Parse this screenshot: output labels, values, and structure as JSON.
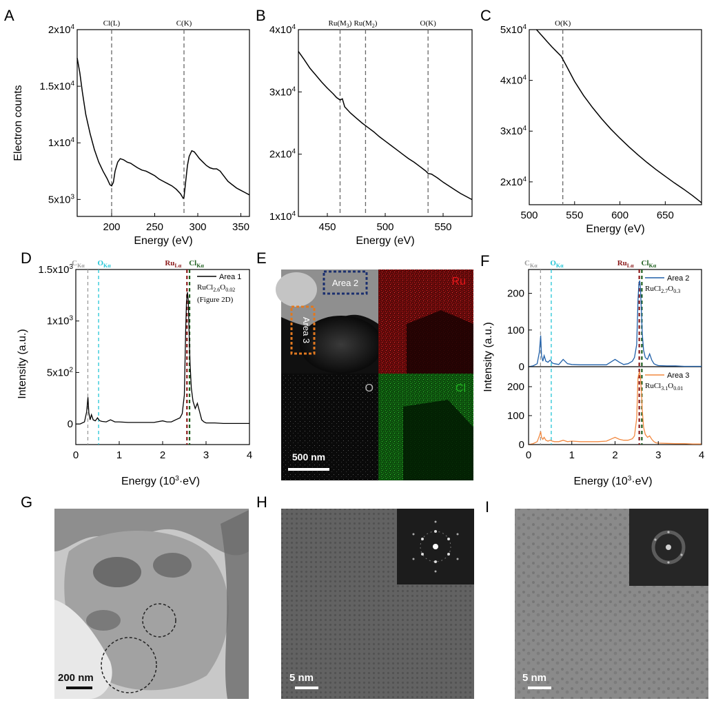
{
  "panel_letters": [
    "A",
    "B",
    "C",
    "D",
    "E",
    "F",
    "G",
    "H",
    "I"
  ],
  "chart_data": [
    {
      "panel": "A",
      "type": "line",
      "xlabel": "Energy (eV)",
      "ylabel": "Electron counts",
      "xlim": [
        160,
        360
      ],
      "ylim": [
        3500,
        20000
      ],
      "xticks": [
        200,
        250,
        300,
        350
      ],
      "yticks": [
        {
          "v": 5000,
          "label": "5x10",
          "exp": "3"
        },
        {
          "v": 10000,
          "label": "1x10",
          "exp": "4"
        },
        {
          "v": 15000,
          "label": "1.5x10",
          "exp": "4"
        },
        {
          "v": 20000,
          "label": "2x10",
          "exp": "4"
        }
      ],
      "edges": [
        {
          "x": 200,
          "label": "Cl(L)"
        },
        {
          "x": 284,
          "label": "C(K)"
        }
      ],
      "x": [
        160,
        163,
        166,
        170,
        175,
        180,
        185,
        190,
        195,
        198,
        200,
        202,
        204,
        207,
        210,
        214,
        218,
        222,
        226,
        230,
        235,
        240,
        245,
        250,
        255,
        260,
        265,
        270,
        275,
        280,
        283,
        284,
        286,
        288,
        290,
        293,
        296,
        299,
        302,
        306,
        310,
        314,
        318,
        322,
        326,
        330,
        335,
        340,
        345,
        350,
        355,
        360
      ],
      "y": [
        17500,
        16200,
        14500,
        12500,
        10800,
        9400,
        8300,
        7500,
        6800,
        6300,
        6200,
        6500,
        7500,
        8300,
        8600,
        8500,
        8300,
        8200,
        8000,
        7800,
        7600,
        7500,
        7300,
        7100,
        6800,
        6600,
        6400,
        6200,
        5900,
        5500,
        5100,
        5200,
        6600,
        8000,
        8800,
        9300,
        9200,
        8900,
        8600,
        8300,
        8000,
        7800,
        7700,
        7700,
        7500,
        7100,
        6600,
        6300,
        6000,
        5800,
        5600,
        5400
      ]
    },
    {
      "panel": "B",
      "type": "line",
      "xlabel": "Energy (eV)",
      "ylabel": "",
      "xlim": [
        425,
        575
      ],
      "ylim": [
        10000,
        40000
      ],
      "xticks": [
        450,
        500,
        550
      ],
      "yticks": [
        {
          "v": 10000,
          "label": "1x10",
          "exp": "4"
        },
        {
          "v": 20000,
          "label": "2x10",
          "exp": "4"
        },
        {
          "v": 30000,
          "label": "3x10",
          "exp": "4"
        },
        {
          "v": 40000,
          "label": "4x10",
          "exp": "4"
        }
      ],
      "edges": [
        {
          "x": 461,
          "label": "Ru(M",
          "sub": "3",
          "tail": ")"
        },
        {
          "x": 483,
          "label": "Ru(M",
          "sub": "2",
          "tail": ")"
        },
        {
          "x": 537,
          "label": "O(K)"
        }
      ],
      "x": [
        425,
        430,
        435,
        440,
        445,
        450,
        455,
        458,
        461,
        463,
        465,
        470,
        475,
        480,
        485,
        490,
        495,
        500,
        505,
        510,
        515,
        520,
        525,
        530,
        535,
        537,
        540,
        545,
        550,
        555,
        560,
        565,
        570,
        575
      ],
      "y": [
        36500,
        35200,
        33800,
        32700,
        31600,
        30600,
        29700,
        29100,
        28700,
        28900,
        27600,
        26600,
        25800,
        25000,
        24300,
        23600,
        22800,
        22100,
        21400,
        20700,
        20000,
        19300,
        18700,
        18000,
        17300,
        16900,
        16800,
        16200,
        15500,
        14900,
        14300,
        13700,
        13200,
        12700
      ]
    },
    {
      "panel": "C",
      "type": "line",
      "xlabel": "Energy (eV)",
      "ylabel": "",
      "xlim": [
        500,
        690
      ],
      "ylim": [
        15500,
        50000
      ],
      "xticks": [
        500,
        550,
        600,
        650
      ],
      "yticks": [
        {
          "v": 20000,
          "label": "2x10",
          "exp": "4"
        },
        {
          "v": 30000,
          "label": "3x10",
          "exp": "4"
        },
        {
          "v": 40000,
          "label": "4x10",
          "exp": "4"
        },
        {
          "v": 50000,
          "label": "5x10",
          "exp": "4"
        }
      ],
      "edges": [
        {
          "x": 537,
          "label": "O(K)"
        }
      ],
      "x": [
        508,
        515,
        520,
        525,
        530,
        535,
        540,
        545,
        550,
        560,
        570,
        580,
        590,
        600,
        610,
        620,
        630,
        640,
        650,
        660,
        670,
        680,
        690
      ],
      "y": [
        50000,
        48600,
        47600,
        46600,
        45700,
        44800,
        43200,
        41500,
        39800,
        37000,
        34600,
        32400,
        30400,
        28600,
        26900,
        25300,
        23800,
        22400,
        21100,
        19800,
        18600,
        17300,
        15900
      ]
    },
    {
      "panel": "D",
      "type": "line",
      "xlabel": "Energy (10",
      "xlabel_sup": "3",
      "xlabel_tail": "·eV)",
      "ylabel": "Intensity (a.u.)",
      "xlim": [
        0,
        4
      ],
      "ylim": [
        -200,
        1500
      ],
      "xticks": [
        0,
        1,
        2,
        3,
        4
      ],
      "yticks": [
        {
          "v": 0,
          "label": "0",
          "exp": ""
        },
        {
          "v": 500,
          "label": "5x10",
          "exp": "2"
        },
        {
          "v": 1000,
          "label": "1x10",
          "exp": "3"
        },
        {
          "v": 1500,
          "label": "1.5x10",
          "exp": "3"
        }
      ],
      "markers": [
        {
          "x": 0.277,
          "color": "#9a9a9a",
          "label": "C",
          "sub": "Kα"
        },
        {
          "x": 0.525,
          "color": "#22c5d6",
          "label": "O",
          "sub": "Kα"
        },
        {
          "x": 2.56,
          "color": "#8b1a1a",
          "label": "Ru",
          "sub": "Lα"
        },
        {
          "x": 2.62,
          "color": "#1e5e1e",
          "label": "Cl",
          "sub": "Kα"
        }
      ],
      "legend": {
        "name": "Area 1",
        "formula": "RuCl",
        "s1": "2.6",
        "mid": "O",
        "s2": "0.02",
        "note": "(Figure 2D)"
      },
      "x": [
        0,
        0.1,
        0.2,
        0.25,
        0.28,
        0.3,
        0.33,
        0.36,
        0.4,
        0.45,
        0.5,
        0.53,
        0.56,
        0.6,
        0.7,
        0.8,
        0.9,
        1.0,
        1.2,
        1.4,
        1.6,
        1.8,
        2.0,
        2.1,
        2.2,
        2.3,
        2.4,
        2.45,
        2.5,
        2.53,
        2.55,
        2.57,
        2.59,
        2.61,
        2.63,
        2.66,
        2.7,
        2.75,
        2.8,
        2.85,
        2.9,
        2.95,
        3.0,
        3.2,
        3.4,
        3.6,
        3.8,
        4.0
      ],
      "y": [
        0,
        0,
        20,
        120,
        260,
        110,
        40,
        90,
        40,
        30,
        60,
        40,
        30,
        25,
        20,
        40,
        20,
        20,
        15,
        15,
        15,
        15,
        30,
        20,
        20,
        40,
        60,
        100,
        280,
        900,
        1180,
        1280,
        1200,
        900,
        600,
        350,
        220,
        150,
        200,
        120,
        40,
        20,
        10,
        10,
        5,
        5,
        5,
        5
      ]
    },
    {
      "panel": "F",
      "type": "line",
      "xlabel": "Energy (10",
      "xlabel_sup": "3",
      "xlabel_tail": "·eV)",
      "ylabel": "Intensity (a.u.)",
      "xlim": [
        0,
        4
      ],
      "xticks": [
        0,
        1,
        2,
        3,
        4
      ],
      "subplots": [
        {
          "ylim": [
            0,
            250
          ],
          "yticks": [
            0,
            100,
            200
          ],
          "color": "#1f5fa8",
          "legend": {
            "name": "Area 2",
            "formula": "RuCl",
            "s1": "2.7",
            "mid": "O",
            "s2": "0.3"
          },
          "x": [
            0,
            0.1,
            0.2,
            0.25,
            0.28,
            0.3,
            0.33,
            0.36,
            0.4,
            0.45,
            0.5,
            0.55,
            0.6,
            0.7,
            0.8,
            0.9,
            1.0,
            1.2,
            1.4,
            1.6,
            1.8,
            2.0,
            2.1,
            2.2,
            2.3,
            2.4,
            2.45,
            2.5,
            2.53,
            2.55,
            2.57,
            2.59,
            2.61,
            2.63,
            2.66,
            2.7,
            2.75,
            2.8,
            2.85,
            2.9,
            2.95,
            3.0,
            3.2,
            3.4,
            3.6,
            3.8,
            4.0
          ],
          "y": [
            0,
            2,
            8,
            40,
            85,
            30,
            15,
            30,
            15,
            12,
            18,
            10,
            8,
            6,
            20,
            8,
            6,
            5,
            5,
            5,
            5,
            20,
            12,
            6,
            8,
            15,
            25,
            60,
            180,
            225,
            235,
            210,
            150,
            90,
            45,
            25,
            20,
            35,
            18,
            8,
            5,
            3,
            2,
            2,
            1,
            1,
            1
          ]
        },
        {
          "ylim": [
            0,
            250
          ],
          "yticks": [
            0,
            100,
            200
          ],
          "color": "#f2883f",
          "legend": {
            "name": "Area 3",
            "formula": "RuCl",
            "s1": "3.1",
            "mid": "O",
            "s2": "0.01"
          },
          "x": [
            0,
            0.1,
            0.2,
            0.25,
            0.28,
            0.3,
            0.33,
            0.36,
            0.4,
            0.45,
            0.5,
            0.55,
            0.6,
            0.7,
            0.8,
            0.9,
            1.0,
            1.2,
            1.4,
            1.6,
            1.8,
            2.0,
            2.1,
            2.2,
            2.3,
            2.4,
            2.45,
            2.5,
            2.53,
            2.55,
            2.57,
            2.59,
            2.61,
            2.63,
            2.66,
            2.7,
            2.75,
            2.8,
            2.85,
            2.9,
            2.95,
            3.0,
            3.2,
            3.4,
            3.6,
            3.8,
            4.0
          ],
          "y": [
            0,
            3,
            10,
            30,
            45,
            25,
            18,
            25,
            15,
            12,
            15,
            12,
            10,
            10,
            15,
            10,
            12,
            10,
            10,
            10,
            12,
            25,
            18,
            15,
            15,
            20,
            30,
            90,
            230,
            245,
            250,
            230,
            180,
            120,
            60,
            35,
            25,
            30,
            18,
            10,
            6,
            5,
            4,
            3,
            3,
            2,
            2
          ]
        }
      ],
      "markers": [
        {
          "x": 0.277,
          "color": "#9a9a9a",
          "label": "C",
          "sub": "Kα"
        },
        {
          "x": 0.525,
          "color": "#22c5d6",
          "label": "O",
          "sub": "Kα"
        },
        {
          "x": 2.56,
          "color": "#8b1a1a",
          "label": "Ru",
          "sub": "Lα"
        },
        {
          "x": 2.62,
          "color": "#1e5e1e",
          "label": "Cl",
          "sub": "Kα"
        }
      ]
    }
  ],
  "panel_E": {
    "area2_label": "Area 2",
    "area3_label": "Area 3",
    "ru_label": "Ru",
    "o_label": "O",
    "cl_label": "Cl",
    "scale_label": "500 nm",
    "colors": {
      "ru": "#e5161a",
      "o": "#b8b8b8",
      "cl": "#22b322"
    }
  },
  "panel_G": {
    "scale_label": "200 nm"
  },
  "panel_H": {
    "scale_label": "5 nm"
  },
  "panel_I": {
    "scale_label": "5 nm"
  }
}
